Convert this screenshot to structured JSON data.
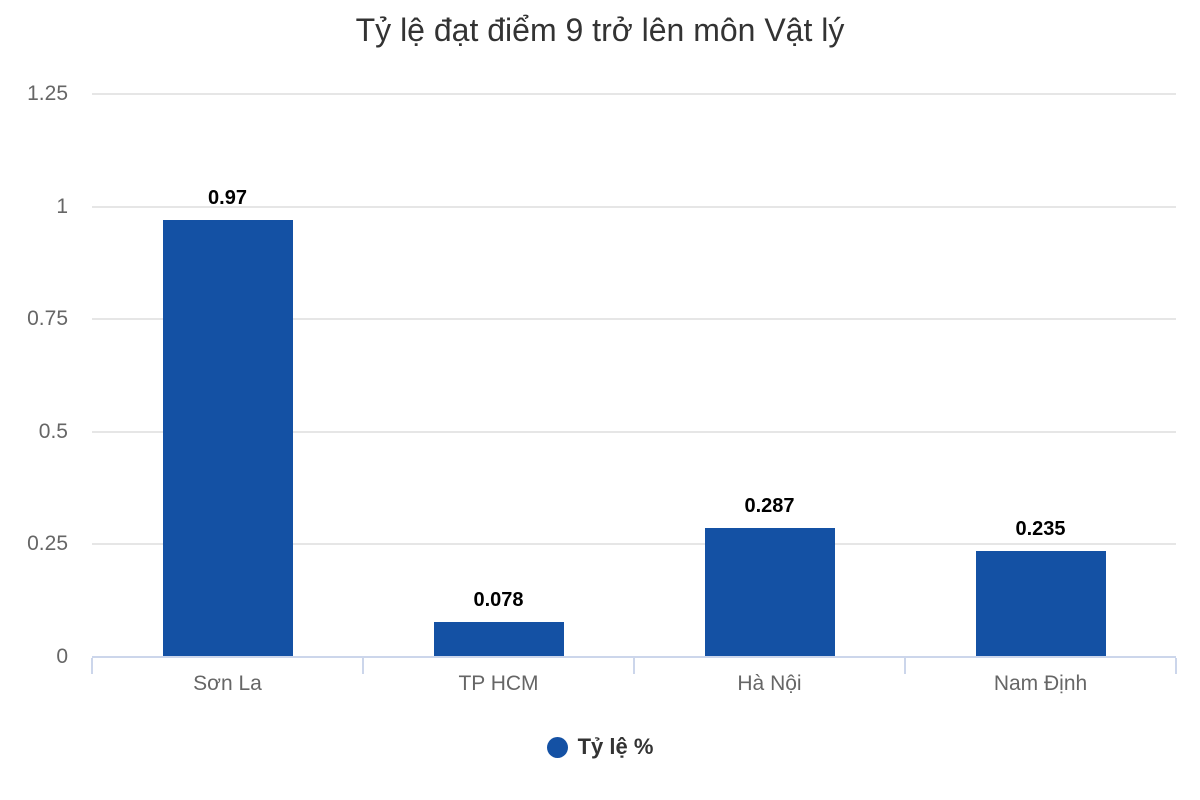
{
  "chart_data": {
    "type": "bar",
    "title": "Tỷ lệ đạt điểm 9 trở lên môn Vật lý",
    "categories": [
      "Sơn La",
      "TP HCM",
      "Hà Nội",
      "Nam Định"
    ],
    "series": [
      {
        "name": "Tỷ lệ %",
        "values": [
          0.97,
          0.078,
          0.287,
          0.235
        ]
      }
    ],
    "value_labels": [
      "0.97",
      "0.078",
      "0.287",
      "0.235"
    ],
    "y_ticks": {
      "values": [
        0,
        0.25,
        0.5,
        0.75,
        1,
        1.25
      ],
      "labels": [
        "0",
        "0.25",
        "0.5",
        "0.75",
        "1",
        "1.25"
      ]
    },
    "ylim": [
      0,
      1.25
    ],
    "grid": true,
    "legend_position": "bottom",
    "colors": {
      "bar": "#1451a4",
      "grid_line": "#e6e6e6",
      "axis_line": "#ccd6eb",
      "axis_label": "#666666",
      "title": "#333333",
      "value_label": "#000000",
      "legend_text": "#333333"
    }
  }
}
